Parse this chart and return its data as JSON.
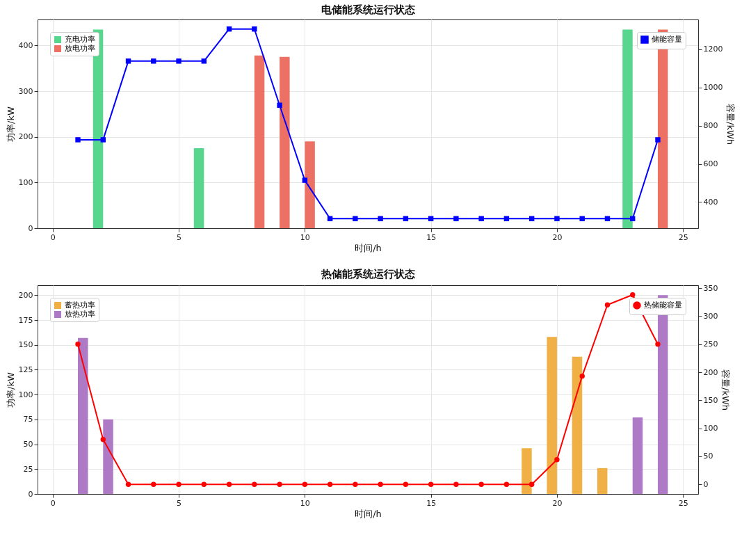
{
  "chart_data": [
    {
      "type": "bar",
      "title": "电储能系统运行状态",
      "xlabel": "时间/h",
      "ylabel": "功率/kW",
      "y2label": "容量/kWh",
      "xlim": [
        -0.6,
        25.6
      ],
      "xticks": [
        0,
        5,
        10,
        15,
        20,
        25
      ],
      "ylim": [
        0,
        457
      ],
      "yticks": [
        0,
        100,
        200,
        300,
        400
      ],
      "y2lim": [
        263,
        1356
      ],
      "y2ticks": [
        400,
        600,
        800,
        1000,
        1200
      ],
      "grid": true,
      "legend": "top left",
      "marker": "square",
      "series": [
        {
          "name": "充电功率",
          "color": "#58d68d",
          "x": [
            1.8,
            5.8,
            22.8
          ],
          "values": [
            435,
            175,
            435
          ]
        },
        {
          "name": "放电功率",
          "color": "#ec7063",
          "x": [
            8.2,
            9.2,
            10.2,
            24.2
          ],
          "values": [
            378,
            375,
            190,
            435
          ]
        },
        {
          "name": "储能容量",
          "type": "line",
          "axis": "y2",
          "color": "#0000ff",
          "x": [
            1,
            2,
            3,
            4,
            5,
            6,
            7,
            8,
            9,
            10,
            11,
            12,
            13,
            14,
            15,
            16,
            17,
            18,
            19,
            20,
            21,
            22,
            23,
            24
          ],
          "values": [
            726,
            726,
            1138,
            1138,
            1138,
            1138,
            1306,
            1306,
            907,
            514,
            313,
            313,
            313,
            313,
            313,
            313,
            313,
            313,
            313,
            313,
            313,
            313,
            313,
            726
          ]
        }
      ]
    },
    {
      "type": "bar",
      "title": "热储能系统运行状态",
      "xlabel": "时间/h",
      "ylabel": "功率/kW",
      "y2label": "容量/kWh",
      "xlim": [
        -0.6,
        25.6
      ],
      "xticks": [
        0,
        5,
        10,
        15,
        20,
        25
      ],
      "ylim": [
        0,
        210
      ],
      "yticks": [
        0,
        25,
        50,
        75,
        100,
        125,
        150,
        175,
        200
      ],
      "y2lim": [
        -17,
        355
      ],
      "y2ticks": [
        0,
        50,
        100,
        150,
        200,
        250,
        300,
        350
      ],
      "grid": true,
      "legend": "top left",
      "marker": "circle",
      "series": [
        {
          "name": "蓄热功率",
          "color": "#f0b045",
          "x": [
            18.8,
            19.8,
            20.8,
            21.8
          ],
          "values": [
            46,
            158,
            138,
            26
          ]
        },
        {
          "name": "放热功率",
          "color": "#af7ac5",
          "x": [
            1.2,
            2.2,
            23.2,
            24.2
          ],
          "values": [
            157,
            75,
            77,
            200
          ]
        },
        {
          "name": "热储能容量",
          "type": "line",
          "axis": "y2",
          "color": "#ff0000",
          "x": [
            1,
            2,
            3,
            4,
            5,
            6,
            7,
            8,
            9,
            10,
            11,
            12,
            13,
            14,
            15,
            16,
            17,
            18,
            19,
            20,
            21,
            22,
            23,
            24
          ],
          "values": [
            250,
            80,
            0,
            0,
            0,
            0,
            0,
            0,
            0,
            0,
            0,
            0,
            0,
            0,
            0,
            0,
            0,
            0,
            0,
            44,
            193,
            320,
            338,
            250
          ]
        }
      ]
    }
  ]
}
